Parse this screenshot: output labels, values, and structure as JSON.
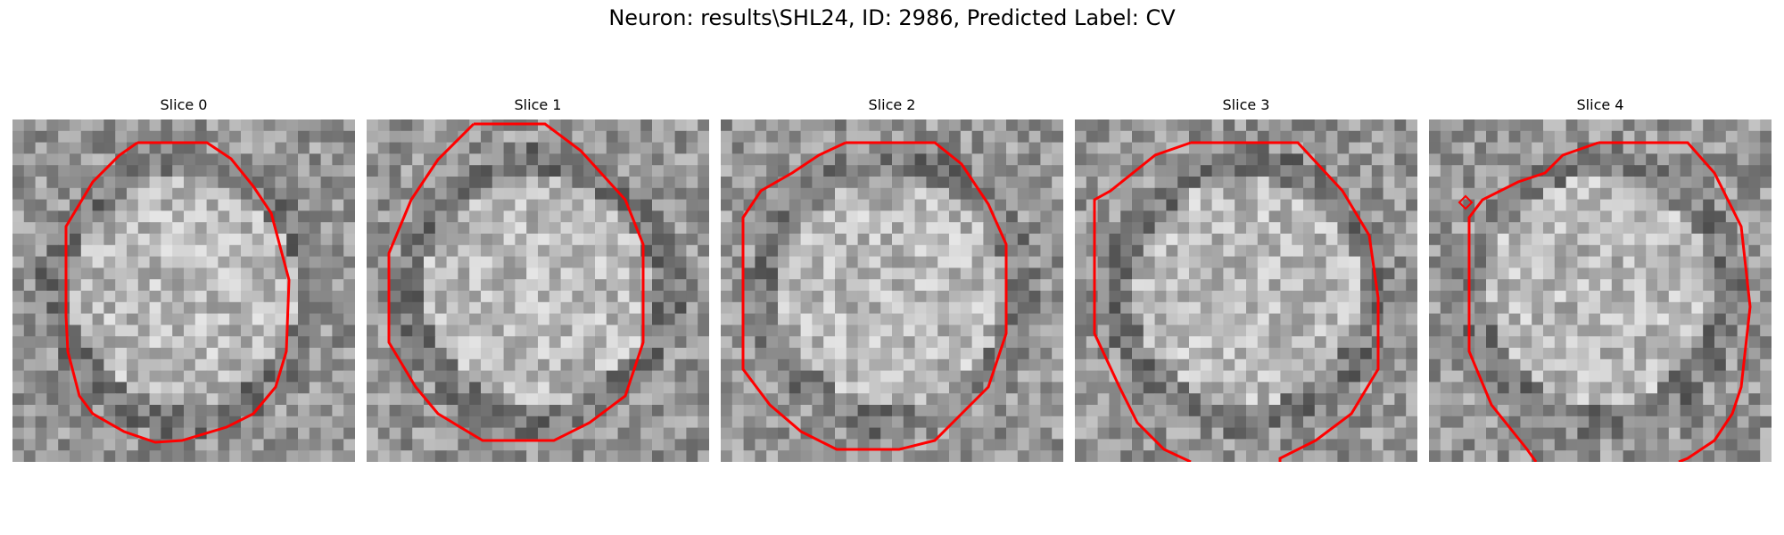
{
  "title": "Neuron: results\\SHL24, ID: 2986, Predicted Label: CV",
  "colors": {
    "contour": "#ff0000",
    "background": "#ffffff"
  },
  "panels": [
    {
      "title": "Slice 0"
    },
    {
      "title": "Slice 1"
    },
    {
      "title": "Slice 2"
    },
    {
      "title": "Slice 3"
    },
    {
      "title": "Slice 4"
    }
  ]
}
